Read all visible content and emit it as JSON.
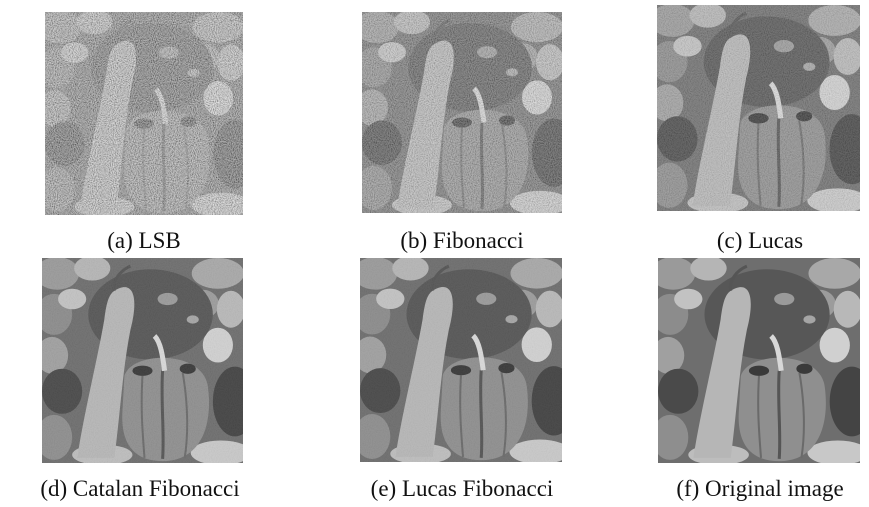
{
  "figure": {
    "panels": [
      {
        "caption": "(a) LSB"
      },
      {
        "caption": "(b) Fibonacci"
      },
      {
        "caption": "(c) Lucas"
      },
      {
        "caption": "(d) Catalan Fibonacci"
      },
      {
        "caption": "(e) Lucas Fibonacci"
      },
      {
        "caption": "(f) Original image"
      }
    ]
  }
}
